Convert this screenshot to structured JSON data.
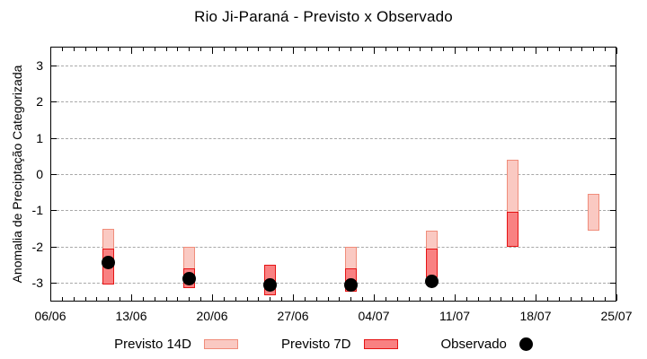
{
  "header": {
    "title": "Rio Ji-Paraná - Previsto x Observado"
  },
  "chart_data": {
    "type": "bar",
    "subtype": "floating-range-bars-with-scatter",
    "title": "Rio Ji-Paraná - Previsto x Observado",
    "xlabel": "",
    "ylabel": "Anomalia de Preciptação Categorizada",
    "ylim": [
      -3.52,
      3.52
    ],
    "yticks": [
      3,
      2,
      1,
      0,
      -1,
      -2,
      -3
    ],
    "x_axis": {
      "tick_labels": [
        "06/06",
        "13/06",
        "20/06",
        "27/06",
        "04/07",
        "11/07",
        "18/07",
        "25/07"
      ],
      "tick_days": [
        0,
        7,
        14,
        21,
        28,
        35,
        42,
        49
      ],
      "total_days": 49,
      "minor_tick_interval_days": 1
    },
    "grid": {
      "horizontal": true,
      "vertical": false,
      "style": "dashed",
      "color": "#a8a8a8"
    },
    "colors": {
      "previsto14_fill": "#fac9c2",
      "previsto14_border": "#f08d7b",
      "previsto7_fill": "#f98182",
      "previsto7_border": "#e51414",
      "observado": "#000000",
      "axis": "#000000",
      "grid": "#a8a8a8"
    },
    "legend": {
      "position": "bottom-center",
      "items": [
        {
          "label": "Previsto 14D",
          "swatch": "box",
          "fill": "#fac9c2",
          "border": "#f08d7b"
        },
        {
          "label": "Previsto 7D",
          "swatch": "box",
          "fill": "#f98182",
          "border": "#e51414"
        },
        {
          "label": "Observado",
          "swatch": "dot",
          "fill": "#000000"
        }
      ]
    },
    "series": [
      {
        "name": "Previsto 14D",
        "type": "range-bar",
        "points": [
          {
            "date": "11/06",
            "day": 5,
            "high": -1.5,
            "low": -3.05
          },
          {
            "date": "18/06",
            "day": 12,
            "high": -2.0,
            "low": -3.15
          },
          {
            "date": "25/06",
            "day": 19,
            "high": -2.5,
            "low": -3.35
          },
          {
            "date": "02/07",
            "day": 26,
            "high": -2.0,
            "low": -3.25
          },
          {
            "date": "09/07",
            "day": 33,
            "high": -1.55,
            "low": -2.85
          },
          {
            "date": "16/07",
            "day": 40,
            "high": 0.4,
            "low": -2.0
          },
          {
            "date": "23/07",
            "day": 47,
            "high": -0.55,
            "low": -1.55
          }
        ]
      },
      {
        "name": "Previsto 7D",
        "type": "range-bar",
        "points": [
          {
            "date": "11/06",
            "day": 5,
            "high": -2.05,
            "low": -3.05
          },
          {
            "date": "18/06",
            "day": 12,
            "high": -2.6,
            "low": -3.15
          },
          {
            "date": "25/06",
            "day": 19,
            "high": -2.5,
            "low": -3.35
          },
          {
            "date": "02/07",
            "day": 26,
            "high": -2.6,
            "low": -3.25
          },
          {
            "date": "09/07",
            "day": 33,
            "high": -2.05,
            "low": -2.85
          },
          {
            "date": "16/07",
            "day": 40,
            "high": -1.05,
            "low": -2.0
          }
        ]
      },
      {
        "name": "Observado",
        "type": "scatter",
        "points": [
          {
            "date": "11/06",
            "day": 5,
            "value": -2.45
          },
          {
            "date": "18/06",
            "day": 12,
            "value": -2.9
          },
          {
            "date": "25/06",
            "day": 19,
            "value": -3.05
          },
          {
            "date": "02/07",
            "day": 26,
            "value": -3.05
          },
          {
            "date": "09/07",
            "day": 33,
            "value": -2.95
          }
        ]
      }
    ]
  }
}
